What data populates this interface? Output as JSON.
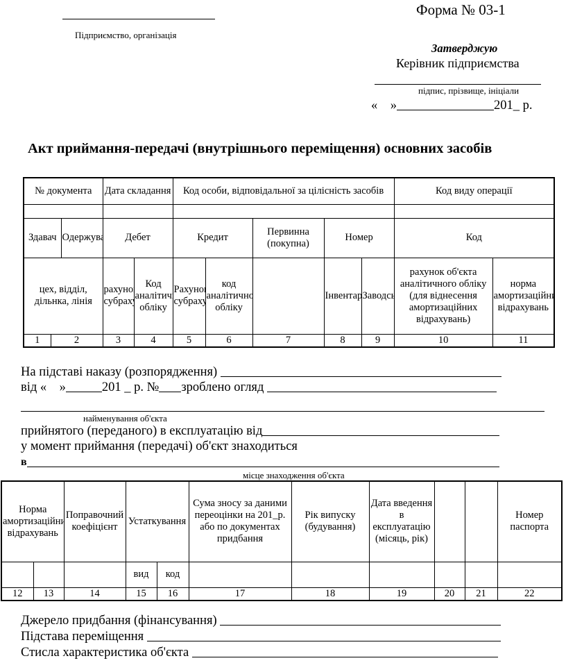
{
  "header": {
    "form_number": "Форма № 03-1",
    "enterprise_label": "Підприємство, організація",
    "approve": "Затверджую",
    "head_title": "Керівник підприємства",
    "signature_label": "підпис, прізвище, ініціали",
    "date_prefix": "«    »",
    "date_suffix": "201_ р."
  },
  "title": "Акт приймання-передачі (внутрішнього переміщення) основних засобів",
  "table1": {
    "doc_number": "№ документа",
    "date": "Дата складання",
    "person_code": "Код особи, відповідальної за цілісність засобів",
    "operation_code": "Код виду операції",
    "giver": "Здавач",
    "receiver": "Одержувач",
    "debit": "Дебет",
    "credit": "Кредит",
    "primary_cost": "Первинна (покупна)",
    "number": "Номер",
    "code": "Код",
    "workshop": "цех, відділ, дільнка, лінія",
    "debit_account": "рахунок, субрахунок",
    "debit_analytic": "Код аналітичного обліку",
    "credit_account": "Рахунок, субрахунок",
    "credit_analytic": "код аналітичного обліку",
    "inventory": "Інвентарний",
    "factory": "Заводський",
    "object_account": "рахунок об'єкта аналітичного обліку (для віднесення амортизаційних відрахувань)",
    "depreciation_norm": "норма амортизаційних відрахувань",
    "col_numbers": [
      "1",
      "2",
      "3",
      "4",
      "5",
      "6",
      "7",
      "8",
      "9",
      "10",
      "11"
    ]
  },
  "body": {
    "order_label": "На підставі наказу (розпорядження)",
    "from_label": "від «    »",
    "year_label": "201 _ р. №",
    "inspection_label": "зроблено огляд",
    "object_name_caption": "найменування об'єкта",
    "accepted_label": "прийнятого (переданого) в експлуатацію від",
    "location_sentence": "у момент приймання (передачі) об'єкт знаходиться",
    "in_label": "в",
    "location_caption": "місце знаходження об'єкта"
  },
  "table2": {
    "depreciation_norm": "Норма амортизаційних відрахувань",
    "correction_factor": "Поправочний коефіцієнт",
    "equipment": "Устаткування",
    "depreciation_sum": "Сума зносу за даними переоцінки на 201_р. або по документах придбання",
    "year_built": "Рік випуску (будування)",
    "commission_date": "Дата введення в експлуатацію (місяць, рік)",
    "passport_number": "Номер паспорта",
    "kind": "вид",
    "code": "код",
    "col_numbers": [
      "12",
      "13",
      "14",
      "15",
      "16",
      "17",
      "18",
      "19",
      "20",
      "21",
      "22"
    ]
  },
  "footer": {
    "funding_source": "Джерело придбання (фінансування)",
    "transfer_basis": "Підстава переміщення",
    "short_description": "Стисла характеристика об'єкта"
  }
}
